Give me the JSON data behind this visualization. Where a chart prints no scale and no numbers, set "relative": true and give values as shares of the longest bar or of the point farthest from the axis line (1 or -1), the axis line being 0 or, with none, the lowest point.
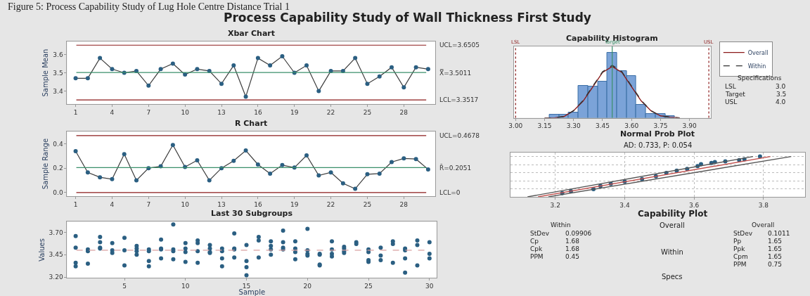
{
  "chart_data": [
    {
      "type": "other",
      "title": "Process Capability Study of Wall Thickness First Study",
      "annotations": [
        "Figure 5: Process Capability Study of Lug Hole Centre Distance Trial 1"
      ]
    },
    {
      "type": "line",
      "title": "Xbar Chart",
      "ylabel": "Sample Mean",
      "marker": "circle",
      "line_style": "solid",
      "x": [
        1,
        2,
        3,
        4,
        5,
        6,
        7,
        8,
        9,
        10,
        11,
        12,
        13,
        14,
        15,
        16,
        17,
        18,
        19,
        20,
        21,
        22,
        23,
        24,
        25,
        26,
        27,
        28,
        29,
        30
      ],
      "series": [
        {
          "color": "#2b5f82",
          "values": [
            3.47,
            3.47,
            3.58,
            3.52,
            3.5,
            3.51,
            3.43,
            3.52,
            3.55,
            3.49,
            3.52,
            3.51,
            3.44,
            3.54,
            3.37,
            3.58,
            3.54,
            3.59,
            3.5,
            3.54,
            3.4,
            3.51,
            3.51,
            3.58,
            3.44,
            3.48,
            3.53,
            3.42,
            3.53,
            3.52
          ]
        }
      ],
      "xlim": [
        0.3,
        30.6
      ],
      "xticks": [
        1,
        4,
        7,
        10,
        13,
        16,
        19,
        22,
        25,
        28
      ],
      "ylim": [
        3.33,
        3.67
      ],
      "yticks": [
        3.4,
        3.5,
        3.6
      ],
      "ref_lines": [
        {
          "axis": "y",
          "value": 3.6505,
          "label": "UCL=3.6505",
          "color": "#8b1a1a"
        },
        {
          "axis": "y",
          "value": 3.5011,
          "label": "X̿=3.5011",
          "color": "#3a8f6a"
        },
        {
          "axis": "y",
          "value": 3.3517,
          "label": "LCL=3.3517",
          "color": "#8b1a1a"
        }
      ]
    },
    {
      "type": "line",
      "title": "R Chart",
      "ylabel": "Sample Range",
      "marker": "circle",
      "line_style": "solid",
      "x": [
        1,
        2,
        3,
        4,
        5,
        6,
        7,
        8,
        9,
        10,
        11,
        12,
        13,
        14,
        15,
        16,
        17,
        18,
        19,
        20,
        21,
        22,
        23,
        24,
        25,
        26,
        27,
        28,
        29,
        30
      ],
      "series": [
        {
          "color": "#2b5f82",
          "values": [
            0.34,
            0.165,
            0.125,
            0.11,
            0.315,
            0.1,
            0.2,
            0.215,
            0.39,
            0.21,
            0.265,
            0.1,
            0.2,
            0.26,
            0.345,
            0.23,
            0.155,
            0.225,
            0.205,
            0.305,
            0.14,
            0.165,
            0.075,
            0.03,
            0.15,
            0.155,
            0.25,
            0.28,
            0.275,
            0.19
          ]
        }
      ],
      "xlim": [
        0.3,
        30.6
      ],
      "xticks": [
        1,
        4,
        7,
        10,
        13,
        16,
        19,
        22,
        25,
        28
      ],
      "ylim": [
        -0.03,
        0.5
      ],
      "yticks": [
        {
          "value": 0,
          "label": "0.0"
        },
        0.2,
        0.4
      ],
      "ref_lines": [
        {
          "axis": "y",
          "value": 0.4678,
          "label": "UCL=0.4678",
          "color": "#8b1a1a"
        },
        {
          "axis": "y",
          "value": 0.2051,
          "label": "R̄=0.2051",
          "color": "#3a8f6a"
        },
        {
          "axis": "y",
          "value": 0,
          "label": "LCL=0",
          "color": "#8b1a1a"
        }
      ]
    },
    {
      "type": "scatter",
      "title": "Last 30 Subgroups",
      "xlabel": "Sample",
      "ylabel": "Values",
      "marker": "circle",
      "series": [
        {
          "color": "#2b5f82",
          "x": [
            1,
            1,
            1,
            1,
            2,
            2,
            2,
            3,
            3,
            3,
            3,
            4,
            4,
            4,
            5,
            5,
            5,
            6,
            6,
            6,
            6,
            7,
            7,
            7,
            7,
            8,
            8,
            8,
            8,
            9,
            9,
            9,
            9,
            10,
            10,
            10,
            10,
            11,
            11,
            11,
            11,
            12,
            12,
            12,
            12,
            13,
            13,
            13,
            13,
            14,
            14,
            14,
            14,
            15,
            15,
            15,
            15,
            16,
            16,
            16,
            17,
            17,
            17,
            17,
            18,
            18,
            18,
            18,
            19,
            19,
            19,
            19,
            20,
            20,
            20,
            20,
            21,
            21,
            21,
            21,
            22,
            22,
            22,
            22,
            23,
            23,
            23,
            23,
            24,
            24,
            25,
            25,
            25,
            25,
            26,
            26,
            26,
            27,
            27,
            27,
            28,
            28,
            28,
            28,
            29,
            29,
            29,
            30,
            30,
            30
          ],
          "values": [
            3.66,
            3.53,
            3.36,
            3.32,
            3.51,
            3.49,
            3.35,
            3.65,
            3.59,
            3.53,
            3.52,
            3.58,
            3.5,
            3.47,
            3.64,
            3.5,
            3.33,
            3.55,
            3.52,
            3.49,
            3.45,
            3.51,
            3.49,
            3.38,
            3.32,
            3.62,
            3.52,
            3.51,
            3.41,
            3.79,
            3.51,
            3.49,
            3.4,
            3.58,
            3.52,
            3.48,
            3.37,
            3.61,
            3.58,
            3.49,
            3.36,
            3.56,
            3.52,
            3.48,
            3.47,
            3.52,
            3.49,
            3.41,
            3.32,
            3.69,
            3.52,
            3.51,
            3.42,
            3.56,
            3.38,
            3.31,
            3.22,
            3.65,
            3.61,
            3.42,
            3.6,
            3.55,
            3.51,
            3.45,
            3.72,
            3.59,
            3.53,
            3.51,
            3.6,
            3.52,
            3.48,
            3.4,
            3.74,
            3.5,
            3.46,
            3.44,
            3.46,
            3.45,
            3.34,
            3.33,
            3.6,
            3.51,
            3.46,
            3.43,
            3.54,
            3.52,
            3.49,
            3.47,
            3.59,
            3.57,
            3.51,
            3.48,
            3.39,
            3.37,
            3.53,
            3.44,
            3.39,
            3.6,
            3.57,
            3.36,
            3.52,
            3.5,
            3.41,
            3.25,
            3.61,
            3.56,
            3.33,
            3.59,
            3.46,
            3.41
          ]
        }
      ],
      "xlim": [
        0.3,
        30.6
      ],
      "xticks": [
        5,
        10,
        15,
        20,
        25,
        30
      ],
      "ylim": [
        3.19,
        3.82
      ],
      "yticks": [
        {
          "value": 3.2,
          "label": "3.20"
        },
        {
          "value": 3.45,
          "label": "3.45"
        },
        {
          "value": 3.7,
          "label": "3.70"
        }
      ],
      "ref_lines": [
        {
          "axis": "y",
          "value": 3.5011,
          "label": null,
          "color": "#d9a0a0",
          "line_style": "dashed"
        }
      ]
    },
    {
      "type": "histogram",
      "title": "Capability Histogram",
      "relative": true,
      "legend": "right",
      "color": "#7ba3d8",
      "bins": [
        3.175,
        3.225,
        3.275,
        3.325,
        3.375,
        3.425,
        3.475,
        3.525,
        3.575,
        3.625,
        3.675,
        3.725,
        3.775,
        3.825
      ],
      "values": [
        0.05,
        0.05,
        0.08,
        0.49,
        0.48,
        0.56,
        1.0,
        0.72,
        0.65,
        0.2,
        0.06,
        0.06,
        0.03
      ],
      "series": [
        {
          "type": "line",
          "name": "Overall",
          "color": "#8b1a1a",
          "line_style": "solid",
          "x": [
            3.15,
            3.2,
            3.25,
            3.3,
            3.35,
            3.4,
            3.45,
            3.5,
            3.55,
            3.6,
            3.65,
            3.7,
            3.75,
            3.8,
            3.85
          ],
          "values": [
            0.0,
            0.0,
            0.02,
            0.11,
            0.26,
            0.48,
            0.7,
            0.79,
            0.7,
            0.48,
            0.26,
            0.11,
            0.03,
            0.01,
            0.0
          ]
        },
        {
          "type": "line",
          "name": "Within",
          "color": "#333333",
          "line_style": "dashed",
          "x": [
            3.15,
            3.2,
            3.25,
            3.3,
            3.35,
            3.4,
            3.45,
            3.5,
            3.55,
            3.6,
            3.65,
            3.7,
            3.75,
            3.8,
            3.85
          ],
          "values": [
            0.0,
            0.0,
            0.02,
            0.11,
            0.27,
            0.49,
            0.71,
            0.81,
            0.71,
            0.49,
            0.27,
            0.11,
            0.03,
            0.01,
            0.0
          ]
        }
      ],
      "xlim": [
        2.99,
        4.01
      ],
      "xticks": [
        {
          "value": 3.0,
          "label": "3.00"
        },
        3.15,
        {
          "value": 3.3,
          "label": "3.30"
        },
        3.45,
        {
          "value": 3.6,
          "label": "3.60"
        },
        3.75,
        {
          "value": 3.9,
          "label": "3.90"
        }
      ],
      "ref_lines": [
        {
          "axis": "x",
          "value": 3.0,
          "label": "LSL",
          "color": "#8b1a1a",
          "line_style": "dotted"
        },
        {
          "axis": "x",
          "value": 3.5,
          "label": "Target",
          "color": "#3a8f6a",
          "line_style": "solid"
        },
        {
          "axis": "x",
          "value": 4.0,
          "label": "USL",
          "color": "#8b1a1a",
          "line_style": "dotted"
        }
      ],
      "annotations": [
        "Specifications",
        "LSL",
        "3.0",
        "Target",
        "3.5",
        "USL",
        "4.0"
      ]
    },
    {
      "type": "scatter",
      "title": "Normal Prob Plot",
      "subtitle": "AD: 0.733, P: 0.054",
      "relative": true,
      "grid": true,
      "marker": "circle",
      "series": [
        {
          "color": "#2b5f82",
          "x": [
            3.22,
            3.245,
            3.31,
            3.33,
            3.36,
            3.4,
            3.45,
            3.49,
            3.52,
            3.55,
            3.58,
            3.61,
            3.62,
            3.65,
            3.66,
            3.69,
            3.73,
            3.745,
            3.79
          ],
          "values": [
            0.09,
            0.14,
            0.19,
            0.27,
            0.32,
            0.38,
            0.44,
            0.51,
            0.59,
            0.65,
            0.69,
            0.76,
            0.81,
            0.84,
            0.86,
            0.88,
            0.91,
            0.93,
            1.0
          ]
        },
        {
          "type": "line",
          "marker": "none",
          "color": "#c0504d",
          "x": [
            3.15,
            3.82
          ],
          "values": [
            0.0,
            1.0
          ]
        },
        {
          "type": "line",
          "marker": "none",
          "color": "#555555",
          "x": [
            3.12,
            3.77
          ],
          "values": [
            0.0,
            1.0
          ]
        },
        {
          "type": "line",
          "marker": "none",
          "color": "#555555",
          "x": [
            3.18,
            3.88
          ],
          "values": [
            0.0,
            1.0
          ]
        }
      ],
      "xlim": [
        3.07,
        3.92
      ],
      "xticks": [
        3.2,
        3.4,
        3.6,
        3.8
      ]
    },
    {
      "type": "other",
      "title": "Capability Plot",
      "annotations": [
        "Within",
        "StDev",
        "0.09906",
        "Cp",
        "1.68",
        "Cpk",
        "1.68",
        "PPM",
        "0.45",
        "Overall",
        "Within",
        "Specs",
        "Overall",
        "StDev",
        "0.1011",
        "Pp",
        "1.65",
        "Ppk",
        "1.65",
        "Cpm",
        "1.65",
        "PPM",
        "0.75"
      ]
    }
  ]
}
